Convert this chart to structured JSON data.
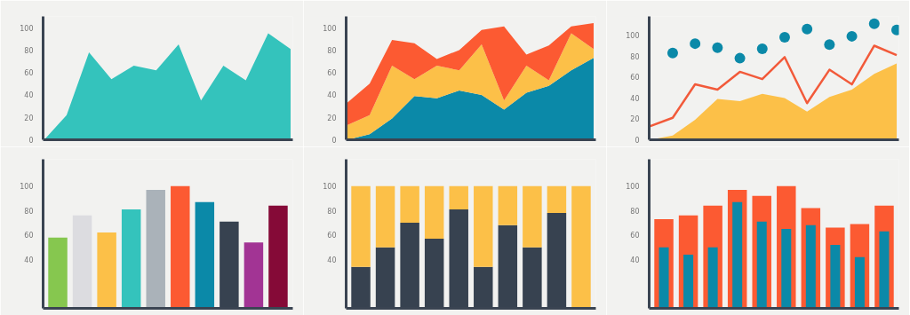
{
  "chart_data": [
    {
      "type": "area",
      "categories": [
        null,
        null,
        null,
        null,
        null,
        null,
        null,
        null,
        null,
        null,
        null,
        null
      ],
      "ylim": [
        0,
        110
      ],
      "yticks": [
        0,
        20,
        40,
        60,
        80,
        100
      ],
      "tick_labels": "y",
      "grid": false,
      "series": [
        {
          "color": "#34c3bc",
          "values": [
            0,
            22,
            78,
            54,
            66,
            62,
            85,
            35,
            66,
            53,
            95,
            81
          ]
        }
      ]
    },
    {
      "type": "area",
      "stacked": true,
      "categories": [
        null,
        null,
        null,
        null,
        null,
        null,
        null,
        null,
        null,
        null,
        null,
        null
      ],
      "ylim": [
        0,
        110
      ],
      "yticks": [
        0,
        20,
        40,
        60,
        80,
        100
      ],
      "tick_labels": "y",
      "grid": false,
      "series": [
        {
          "color": "#0b89a8",
          "values": [
            0,
            5,
            19,
            39,
            37,
            44,
            40,
            27,
            42,
            48,
            62,
            73
          ]
        },
        {
          "color": "#fcc048",
          "values": [
            13,
            17,
            47,
            15,
            29,
            18,
            45,
            8,
            24,
            5,
            33,
            8
          ]
        },
        {
          "color": "#fc5a32",
          "values": [
            20,
            28,
            23,
            32,
            6,
            18,
            13,
            66,
            10,
            31,
            6,
            23
          ]
        }
      ]
    },
    {
      "type": "area",
      "categories": [
        null,
        null,
        null,
        null,
        null,
        null,
        null,
        null,
        null,
        null,
        null,
        null
      ],
      "ylim": [
        0,
        118
      ],
      "yticks": [
        0,
        20,
        40,
        60,
        80,
        100
      ],
      "tick_labels": "y",
      "grid": false,
      "series": [
        {
          "type": "area",
          "color": "#fcc048",
          "values": [
            0,
            4,
            19,
            39,
            37,
            44,
            40,
            27,
            41,
            48,
            63,
            73
          ]
        },
        {
          "type": "line",
          "color": "#f25a3a",
          "line_style": "solid",
          "marker": "none",
          "values": [
            13,
            21,
            53,
            48,
            65,
            58,
            79,
            35,
            67,
            53,
            90,
            81
          ]
        },
        {
          "type": "scatter",
          "color": "#0b89a8",
          "marker": "circle",
          "values": [
            null,
            83,
            92,
            88,
            78,
            87,
            98,
            106,
            91,
            99,
            111,
            105
          ]
        }
      ]
    },
    {
      "type": "bar",
      "categories": [
        null,
        null,
        null,
        null,
        null,
        null,
        null,
        null,
        null,
        null
      ],
      "ylim": [
        0,
        122
      ],
      "yticks": [
        40,
        60,
        80,
        100
      ],
      "tick_labels": "y",
      "grid": false,
      "values": [
        58,
        76,
        62,
        81,
        97,
        100,
        87,
        71,
        54,
        84
      ],
      "colors": [
        "#86c74f",
        "#dcdce0",
        "#fcc048",
        "#34c3bc",
        "#aab2b9",
        "#fc5a32",
        "#0b89a8",
        "#374250",
        "#a23494",
        "#850a37"
      ]
    },
    {
      "type": "bar",
      "stacked": true,
      "categories": [
        null,
        null,
        null,
        null,
        null,
        null,
        null,
        null,
        null,
        null
      ],
      "ylim": [
        0,
        122
      ],
      "yticks": [
        40,
        60,
        80,
        100
      ],
      "tick_labels": "y",
      "grid": false,
      "series": [
        {
          "color": "#374250",
          "values": [
            34,
            50,
            70,
            57,
            81,
            34,
            68,
            50,
            78,
            null
          ]
        },
        {
          "color": "#fcc048",
          "values": [
            66,
            50,
            30,
            43,
            19,
            66,
            32,
            50,
            22,
            100
          ]
        }
      ]
    },
    {
      "type": "bar",
      "categories": [
        null,
        null,
        null,
        null,
        null,
        null,
        null,
        null,
        null,
        null
      ],
      "ylim": [
        0,
        122
      ],
      "yticks": [
        40,
        60,
        80,
        100
      ],
      "tick_labels": "y",
      "grid": false,
      "series": [
        {
          "color": "#fc5a32",
          "values": [
            73,
            76,
            84,
            97,
            92,
            100,
            82,
            66,
            69,
            84
          ]
        },
        {
          "color": "#0b89a8",
          "values": [
            50,
            44,
            50,
            87,
            71,
            65,
            68,
            52,
            42,
            63
          ]
        }
      ]
    }
  ]
}
